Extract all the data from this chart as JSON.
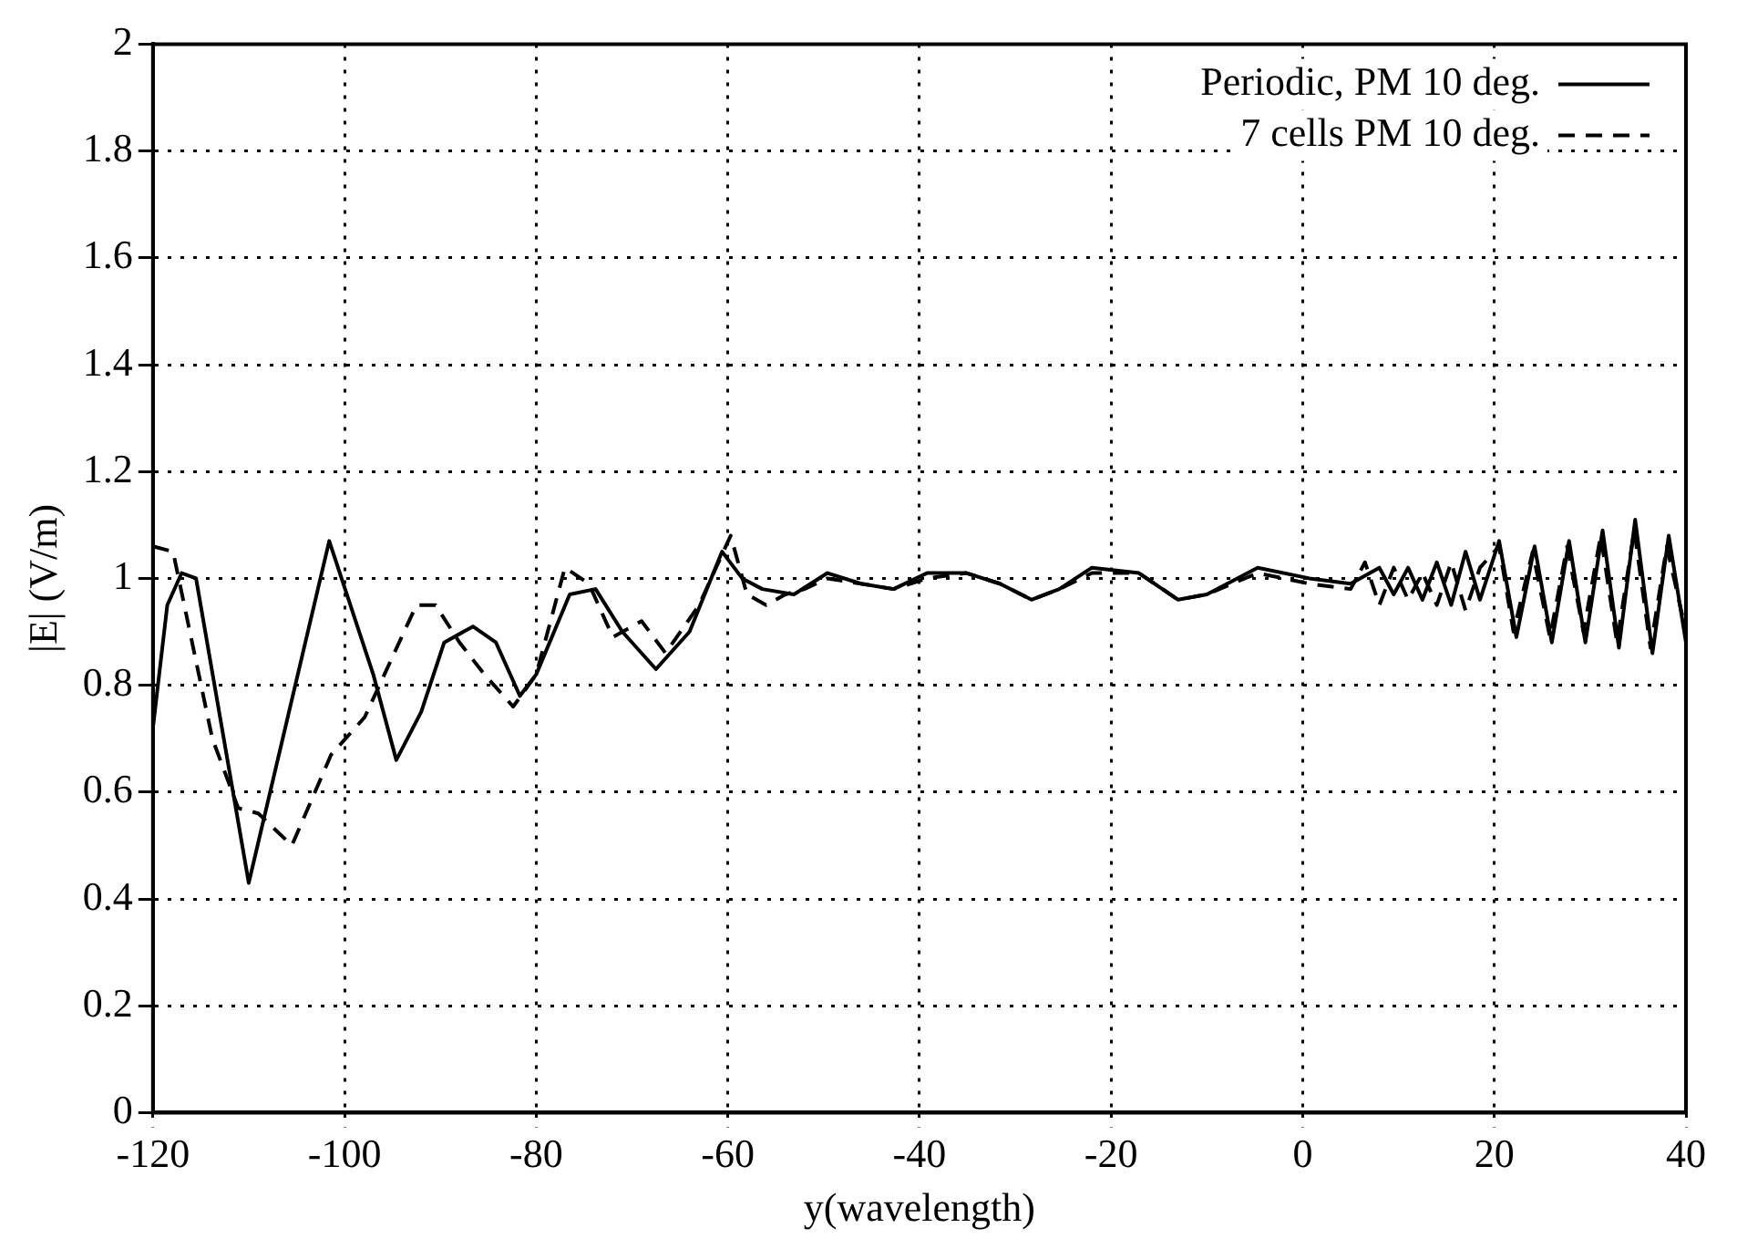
{
  "chart_data": {
    "type": "line",
    "xlabel": "y(wavelength)",
    "ylabel": "|E| (V/m)",
    "xlim": [
      -120,
      40
    ],
    "xticks": [
      -120,
      -100,
      -80,
      -60,
      -40,
      -20,
      0,
      20,
      40
    ],
    "ylim": [
      0,
      2
    ],
    "yticks": [
      0,
      0.2,
      0.4,
      0.6,
      0.8,
      1,
      1.2,
      1.4,
      1.6,
      1.8,
      2
    ],
    "grid": true,
    "legend": "top right",
    "marker": "none",
    "series": [
      {
        "name": "Periodic, PM 10 deg.",
        "color": "#000000",
        "line_style": "solid",
        "x": [
          -120,
          -118.5,
          -117,
          -115.5,
          -110,
          -101.6,
          -97,
          -94.6,
          -92,
          -89.6,
          -86.6,
          -84.2,
          -81.7,
          -80,
          -76.5,
          -73.8,
          -71,
          -67.5,
          -64,
          -60.6,
          -58.5,
          -56.4,
          -53.1,
          -49.6,
          -46.1,
          -42.7,
          -39.2,
          -35.1,
          -31.6,
          -28.3,
          -25.4,
          -22,
          -17.1,
          -13,
          -10,
          -4.7,
          0.7,
          5,
          8,
          9.5,
          11,
          12.5,
          14,
          15.5,
          17,
          18.5,
          20.5,
          22.3,
          24.2,
          26,
          27.8,
          29.5,
          31.3,
          33,
          34.7,
          36.5,
          38.2,
          40
        ],
        "values": [
          0.72,
          0.95,
          1.01,
          1.0,
          0.43,
          1.07,
          0.82,
          0.66,
          0.75,
          0.88,
          0.91,
          0.88,
          0.78,
          0.82,
          0.97,
          0.98,
          0.9,
          0.83,
          0.9,
          1.05,
          1.0,
          0.98,
          0.97,
          1.01,
          0.99,
          0.98,
          1.01,
          1.01,
          0.99,
          0.96,
          0.98,
          1.02,
          1.01,
          0.96,
          0.97,
          1.02,
          1.0,
          0.99,
          1.02,
          0.97,
          1.02,
          0.96,
          1.03,
          0.95,
          1.05,
          0.96,
          1.07,
          0.89,
          1.06,
          0.88,
          1.07,
          0.88,
          1.09,
          0.87,
          1.11,
          0.86,
          1.08,
          0.88
        ]
      },
      {
        "name": "7 cells PM 10 deg.",
        "color": "#000000",
        "line_style": "dashed",
        "x": [
          -120,
          -117.9,
          -113.8,
          -111.1,
          -109,
          -105.5,
          -101.4,
          -97.9,
          -92.5,
          -90.5,
          -88,
          -85.4,
          -82.4,
          -80,
          -77,
          -74.5,
          -72,
          -69,
          -66.5,
          -63,
          -59.7,
          -58,
          -56,
          -54,
          -52,
          -49.6,
          -46.1,
          -42.7,
          -39.2,
          -35.1,
          -31.6,
          -28.3,
          -25.4,
          -22,
          -17.1,
          -13,
          -10,
          -4.7,
          0.7,
          5,
          6.5,
          8,
          9.5,
          11,
          12.5,
          14,
          15.5,
          17,
          18.5,
          20.5,
          22,
          24,
          25.8,
          27.6,
          29.3,
          31.1,
          32.8,
          34.6,
          36.3,
          38,
          40
        ],
        "values": [
          1.06,
          1.05,
          0.7,
          0.57,
          0.56,
          0.5,
          0.67,
          0.74,
          0.95,
          0.95,
          0.88,
          0.82,
          0.76,
          0.82,
          1.02,
          0.99,
          0.89,
          0.92,
          0.86,
          0.95,
          1.08,
          0.97,
          0.95,
          0.97,
          0.98,
          1.0,
          0.99,
          0.98,
          1.0,
          1.01,
          0.99,
          0.96,
          0.98,
          1.01,
          1.01,
          0.96,
          0.97,
          1.01,
          0.99,
          0.98,
          1.03,
          0.95,
          1.02,
          0.96,
          1.01,
          0.95,
          1.03,
          0.94,
          1.02,
          1.06,
          0.9,
          1.05,
          0.89,
          1.06,
          0.9,
          1.08,
          0.88,
          1.09,
          0.87,
          1.06,
          0.9
        ]
      }
    ]
  }
}
